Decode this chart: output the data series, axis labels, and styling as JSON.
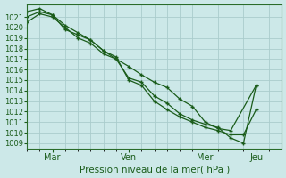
{
  "title": "",
  "xlabel": "Pression niveau de la mer( hPa )",
  "ylabel": "",
  "bg_color": "#cce8e8",
  "grid_color": "#aacccc",
  "line_color": "#1a5c1a",
  "marker_color": "#1a5c1a",
  "ylim": [
    1008.5,
    1022.2
  ],
  "yticks": [
    1009,
    1010,
    1011,
    1012,
    1013,
    1014,
    1015,
    1016,
    1017,
    1018,
    1019,
    1020,
    1021
  ],
  "xtick_labels": [
    "Mar",
    "Ven",
    "Mer",
    "Jeu"
  ],
  "xtick_positions": [
    2,
    8,
    14,
    18
  ],
  "xlim": [
    0,
    20
  ],
  "num_x_minor": 20,
  "series": [
    {
      "x": [
        0,
        1,
        2,
        3,
        4,
        5,
        6,
        7,
        8,
        9,
        10,
        11,
        12,
        13,
        14,
        15,
        16,
        18
      ],
      "y": [
        1020.5,
        1021.3,
        1021.0,
        1020.0,
        1019.0,
        1018.5,
        1017.5,
        1017.0,
        1016.3,
        1015.5,
        1014.8,
        1014.3,
        1013.2,
        1012.5,
        1011.0,
        1010.4,
        1010.2,
        1014.5
      ]
    },
    {
      "x": [
        0,
        1,
        2,
        3,
        4,
        5,
        6,
        7,
        8,
        9,
        10,
        11,
        12,
        13,
        14,
        15,
        16,
        17,
        18
      ],
      "y": [
        1021.0,
        1021.5,
        1021.2,
        1019.8,
        1019.3,
        1018.8,
        1017.8,
        1017.2,
        1015.0,
        1014.5,
        1013.0,
        1012.2,
        1011.5,
        1011.0,
        1010.5,
        1010.2,
        1009.8,
        1009.8,
        1012.2
      ]
    },
    {
      "x": [
        0,
        1,
        2,
        3,
        4,
        5,
        6,
        7,
        8,
        9,
        10,
        11,
        12,
        13,
        14,
        15,
        16,
        17,
        18
      ],
      "y": [
        1021.5,
        1021.8,
        1021.2,
        1020.2,
        1019.5,
        1018.8,
        1017.8,
        1017.0,
        1015.2,
        1014.8,
        1013.5,
        1012.8,
        1011.8,
        1011.2,
        1010.8,
        1010.5,
        1009.5,
        1009.0,
        1014.5
      ]
    }
  ]
}
